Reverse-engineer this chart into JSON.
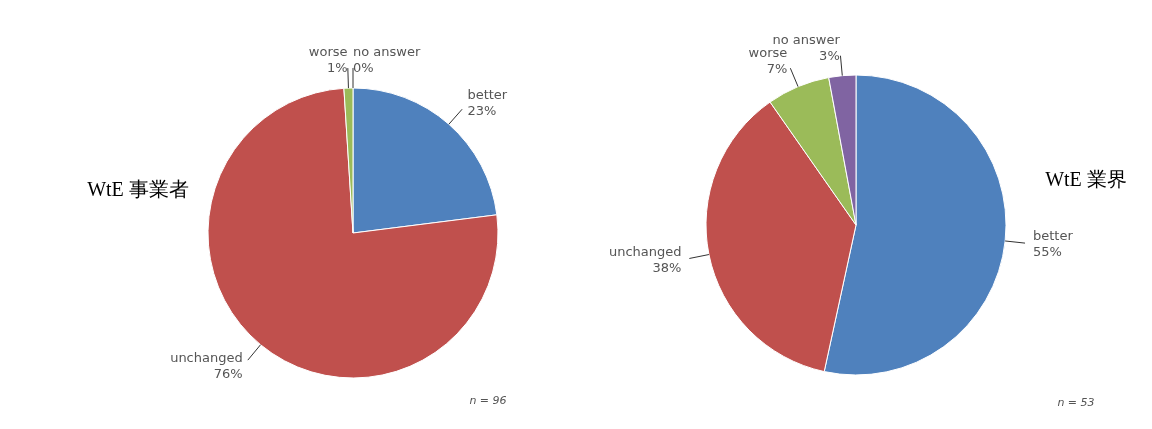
{
  "chart_data": [
    {
      "type": "pie",
      "title": "WtE 事業者",
      "categories": [
        "better",
        "unchanged",
        "worse",
        "no answer"
      ],
      "values": [
        23,
        76,
        1,
        0
      ],
      "value_labels": [
        "23%",
        "76%",
        "1%",
        "0%"
      ],
      "colors": [
        "#4f81bd",
        "#c0504d",
        "#9bbb59",
        "#8064a2"
      ],
      "annotations": [
        "n = 96"
      ]
    },
    {
      "type": "pie",
      "title": "WtE 業界",
      "categories": [
        "better",
        "unchanged",
        "worse",
        "no answer"
      ],
      "values": [
        55,
        38,
        7,
        3
      ],
      "value_labels": [
        "55%",
        "38%",
        "7%",
        "3%"
      ],
      "colors": [
        "#4f81bd",
        "#c0504d",
        "#9bbb59",
        "#8064a2"
      ],
      "annotations": [
        "n = 53"
      ]
    }
  ]
}
